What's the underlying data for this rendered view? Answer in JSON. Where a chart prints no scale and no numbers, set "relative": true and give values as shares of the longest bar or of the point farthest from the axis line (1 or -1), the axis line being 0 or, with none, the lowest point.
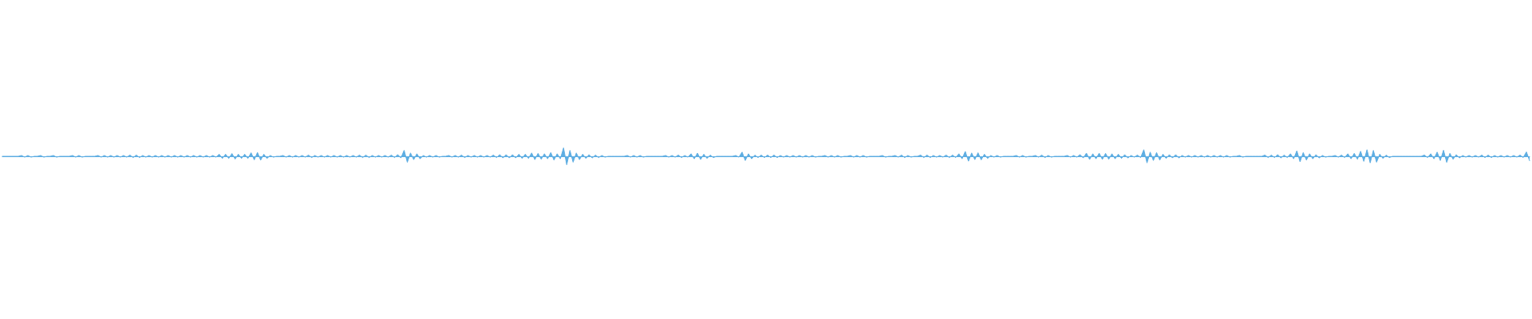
{
  "chart_data": {
    "type": "area",
    "relative": true,
    "marker": "none",
    "categories": [
      null,
      null,
      null,
      null,
      null,
      null,
      null,
      null,
      null,
      null,
      null,
      null,
      null,
      null,
      null,
      null,
      null,
      null,
      null,
      null,
      null,
      null,
      null,
      null,
      null,
      null,
      null,
      null,
      null,
      null,
      null,
      null,
      null,
      null,
      null,
      null,
      null,
      null,
      null,
      null,
      null,
      null,
      null,
      null,
      null,
      null,
      null,
      null,
      null,
      null,
      null,
      null,
      null,
      null,
      null,
      null,
      null,
      null,
      null,
      null,
      null,
      null,
      null,
      null,
      null,
      null,
      null,
      null,
      null,
      null,
      null,
      null,
      null,
      null,
      null,
      null,
      null,
      null,
      null,
      null,
      null,
      null,
      null,
      null,
      null,
      null,
      null,
      null,
      null,
      null,
      null,
      null,
      null,
      null,
      null,
      null,
      null,
      null,
      null,
      null,
      null,
      null,
      null,
      null,
      null,
      null,
      null,
      null,
      null,
      null,
      null,
      null,
      null,
      null,
      null,
      null,
      null,
      null,
      null,
      null,
      null,
      null,
      null,
      null,
      null,
      null,
      null,
      null,
      null,
      null,
      null,
      null,
      null,
      null,
      null,
      null,
      null,
      null,
      null,
      null,
      null,
      null,
      null,
      null,
      null,
      null,
      null,
      null,
      null,
      null,
      null,
      null,
      null,
      null,
      null,
      null,
      null,
      null,
      null,
      null,
      null,
      null,
      null,
      null,
      null,
      null,
      null,
      null,
      null,
      null,
      null,
      null,
      null,
      null,
      null,
      null,
      null,
      null,
      null,
      null,
      null,
      null,
      null,
      null,
      null,
      null,
      null,
      null,
      null,
      null,
      null,
      null,
      null,
      null,
      null,
      null,
      null,
      null,
      null,
      null,
      null,
      null,
      null,
      null,
      null,
      null,
      null,
      null,
      null,
      null,
      null,
      null,
      null,
      null,
      null,
      null,
      null,
      null,
      null,
      null,
      null,
      null,
      null,
      null,
      null,
      null,
      null,
      null,
      null,
      null,
      null,
      null,
      null,
      null,
      null,
      null,
      null,
      null,
      null,
      null,
      null,
      null,
      null,
      null,
      null,
      null,
      null,
      null,
      null,
      null,
      null,
      null,
      null,
      null,
      null,
      null,
      null,
      null,
      null,
      null,
      null,
      null,
      null,
      null,
      null,
      null,
      null,
      null,
      null,
      null,
      null,
      null,
      null,
      null,
      null,
      null,
      null,
      null,
      null,
      null,
      null,
      null,
      null,
      null,
      null,
      null,
      null,
      null,
      null,
      null,
      null,
      null,
      null,
      null,
      null,
      null,
      null,
      null,
      null,
      null,
      null,
      null,
      null,
      null,
      null,
      null,
      null,
      null,
      null,
      null,
      null,
      null,
      null,
      null,
      null,
      null,
      null,
      null,
      null,
      null,
      null,
      null,
      null,
      null,
      null,
      null,
      null,
      null,
      null,
      null,
      null,
      null,
      null,
      null,
      null,
      null,
      null,
      null,
      null,
      null,
      null,
      null,
      null,
      null,
      null,
      null,
      null,
      null,
      null,
      null,
      null,
      null,
      null,
      null,
      null,
      null,
      null,
      null,
      null,
      null,
      null,
      null,
      null,
      null,
      null,
      null,
      null,
      null,
      null,
      null,
      null,
      null,
      null,
      null,
      null,
      null,
      null,
      null,
      null,
      null,
      null,
      null,
      null,
      null,
      null,
      null,
      null,
      null,
      null,
      null,
      null,
      null,
      null,
      null,
      null,
      null,
      null,
      null,
      null,
      null,
      null,
      null,
      null,
      null,
      null,
      null,
      null,
      null,
      null,
      null,
      null,
      null,
      null,
      null,
      null,
      null,
      null,
      null,
      null,
      null,
      null,
      null,
      null,
      null,
      null,
      null,
      null,
      null,
      null,
      null,
      null,
      null,
      null,
      null,
      null,
      null,
      null,
      null,
      null,
      null,
      null,
      null,
      null,
      null,
      null,
      null,
      null,
      null,
      null,
      null,
      null,
      null,
      null,
      null,
      null,
      null,
      null,
      null,
      null,
      null,
      null,
      null,
      null,
      null,
      null,
      null,
      null,
      null,
      null,
      null,
      null,
      null,
      null,
      null,
      null,
      null,
      null,
      null,
      null,
      null
    ],
    "series": [
      {
        "color": "#5dade2",
        "values": [
          0,
          0,
          0,
          0,
          0,
          0,
          0.1,
          -0.1,
          0.1,
          -0.1,
          0,
          0,
          0.1,
          -0.1,
          0,
          0,
          0.1,
          -0.1,
          0,
          0,
          0,
          0,
          0.1,
          -0.1,
          0.1,
          -0.1,
          0,
          0,
          0,
          0,
          0.1,
          -0.1,
          0.1,
          -0.1,
          0.1,
          -0.1,
          0.1,
          -0.1,
          0.1,
          -0.1,
          0.15,
          -0.15,
          0.15,
          -0.15,
          0.1,
          -0.1,
          0.1,
          -0.1,
          0.1,
          -0.1,
          0.1,
          -0.1,
          0.1,
          -0.1,
          0.1,
          -0.1,
          0.1,
          -0.1,
          0.1,
          -0.1,
          0.1,
          -0.1,
          0.1,
          -0.1,
          0.1,
          -0.1,
          0.1,
          -0.1,
          0.25,
          -0.25,
          0.25,
          -0.25,
          0.33,
          -0.33,
          0.25,
          -0.25,
          0.25,
          -0.25,
          0.42,
          -0.42,
          0.46,
          -0.46,
          0.25,
          -0.25,
          0.1,
          -0.1,
          0,
          0,
          0.1,
          -0.1,
          0.1,
          -0.1,
          0.1,
          -0.1,
          0.1,
          -0.1,
          0.15,
          -0.15,
          0.1,
          -0.1,
          0.1,
          -0.1,
          0.1,
          -0.1,
          0.1,
          -0.1,
          0.1,
          -0.1,
          0.1,
          -0.1,
          0.1,
          -0.1,
          0.15,
          -0.15,
          0.15,
          -0.15,
          0.1,
          -0.1,
          0.1,
          -0.1,
          0.1,
          -0.1,
          0.15,
          -0.15,
          0.2,
          -0.2,
          0.71,
          -0.71,
          0.4,
          -0.4,
          0.3,
          -0.3,
          0.1,
          -0.1,
          0.1,
          -0.1,
          0.1,
          -0.1,
          0,
          0,
          0.1,
          -0.1,
          0.1,
          -0.1,
          0.15,
          -0.15,
          0.1,
          -0.1,
          0.1,
          -0.1,
          0.1,
          -0.1,
          0.1,
          -0.1,
          0.15,
          -0.15,
          0.2,
          -0.2,
          0.2,
          -0.2,
          0.2,
          -0.2,
          0.25,
          -0.25,
          0.25,
          -0.25,
          0.4,
          -0.4,
          0.35,
          -0.35,
          0.3,
          -0.3,
          0.45,
          -0.45,
          0.3,
          -0.3,
          1,
          -1,
          0.7,
          -0.7,
          0.4,
          -0.4,
          0.25,
          -0.25,
          0.2,
          -0.2,
          0.15,
          -0.15,
          0.1,
          -0.1,
          0,
          0,
          0,
          0,
          0,
          0,
          0.1,
          -0.1,
          0.1,
          -0.1,
          0.1,
          -0.1,
          0,
          0,
          0,
          0,
          0,
          0,
          0.1,
          -0.1,
          0.1,
          -0.1,
          0.15,
          -0.15,
          0.1,
          -0.1,
          0.3,
          -0.3,
          0.38,
          -0.38,
          0.25,
          -0.25,
          0.15,
          -0.15,
          0,
          0,
          0,
          0,
          0,
          0,
          0.1,
          -0.1,
          0.5,
          -0.5,
          0.3,
          -0.3,
          0.15,
          -0.15,
          0.15,
          -0.15,
          0.15,
          -0.15,
          0.15,
          -0.15,
          0.1,
          -0.1,
          0.1,
          -0.1,
          0.1,
          -0.1,
          0.1,
          -0.1,
          0.1,
          -0.1,
          0.1,
          -0.1,
          0,
          0,
          0.1,
          -0.1,
          0.1,
          -0.1,
          0.1,
          -0.1,
          0,
          0,
          0.1,
          -0.1,
          0.1,
          -0.1,
          0.1,
          -0.1,
          0,
          0,
          0,
          0,
          0.1,
          -0.1,
          0,
          0,
          0.1,
          -0.1,
          0.15,
          -0.15,
          0.1,
          -0.1,
          0,
          0,
          0.15,
          -0.15,
          0.15,
          -0.15,
          0.1,
          -0.1,
          0.1,
          -0.1,
          0.15,
          -0.15,
          0.15,
          -0.15,
          0.3,
          -0.3,
          0.58,
          -0.58,
          0.4,
          -0.4,
          0.42,
          -0.42,
          0.25,
          -0.25,
          0.1,
          -0.1,
          0.1,
          -0.1,
          0,
          0,
          0,
          0,
          0.1,
          -0.1,
          0.1,
          -0.1,
          0,
          0,
          0.1,
          -0.1,
          0.15,
          -0.15,
          0.1,
          -0.1,
          0,
          0,
          0,
          0,
          0.1,
          -0.1,
          0.1,
          -0.1,
          0.2,
          -0.2,
          0.38,
          -0.38,
          0.3,
          -0.3,
          0.37,
          -0.37,
          0.35,
          -0.35,
          0.3,
          -0.3,
          0.25,
          -0.25,
          0.2,
          -0.2,
          0.1,
          -0.1,
          0.15,
          -0.15,
          0.78,
          -0.78,
          0.5,
          -0.5,
          0.45,
          -0.45,
          0.25,
          -0.25,
          0.2,
          -0.2,
          0.2,
          -0.2,
          0.1,
          -0.1,
          0.1,
          -0.1,
          0.1,
          -0.1,
          0.1,
          -0.1,
          0.1,
          -0.1,
          0.1,
          -0.1,
          0.1,
          -0.1,
          0.1,
          -0.1,
          0,
          0,
          0.1,
          -0.1,
          0,
          0,
          0,
          0,
          0,
          0,
          0.15,
          -0.15,
          0.15,
          -0.15,
          0.2,
          -0.2,
          0.15,
          -0.15,
          0.3,
          -0.3,
          0.65,
          -0.65,
          0.45,
          -0.45,
          0.3,
          -0.3,
          0.2,
          -0.2,
          0.1,
          -0.1,
          0,
          0,
          0.1,
          -0.1,
          0.15,
          -0.15,
          0.3,
          -0.3,
          0.35,
          -0.35,
          0.6,
          -0.6,
          0.78,
          -0.78,
          0.7,
          -0.7,
          0.25,
          -0.25,
          0.15,
          -0.15,
          0,
          0,
          0,
          0,
          0,
          0,
          0,
          0,
          0,
          0,
          0.15,
          -0.15,
          0.3,
          -0.3,
          0.5,
          -0.5,
          0.72,
          -0.72,
          0.35,
          -0.35,
          0.2,
          -0.2,
          0.1,
          -0.1,
          0.1,
          -0.1,
          0.1,
          -0.1,
          0.15,
          -0.15,
          0.15,
          -0.15,
          0.1,
          -0.1,
          0.1,
          -0.1,
          0.1,
          -0.1,
          0.1,
          -0.1,
          0.15,
          -0.15,
          0.52,
          -0.52
        ]
      }
    ]
  }
}
